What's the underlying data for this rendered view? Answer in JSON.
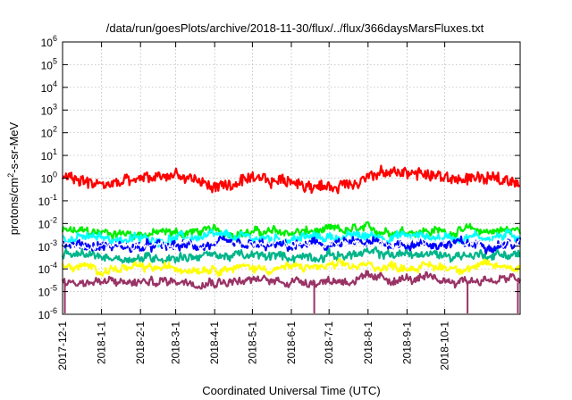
{
  "chart_data": {
    "type": "line",
    "title": "/data/run/goesPlots/archive/2018-11-30/flux/../flux/366daysMarsFluxes.txt",
    "xlabel": "Coordinated Universal Time (UTC)",
    "ylabel": "protons/cm2-s-sr-MeV",
    "ylabel_parts": {
      "base": "protons/cm",
      "sup": "2",
      "rest": "-s-sr-MeV"
    },
    "yscale": "log",
    "ylim_exp": [
      -6,
      6
    ],
    "y_ticks": [
      {
        "base": "10",
        "exp": "-6",
        "e": -6
      },
      {
        "base": "10",
        "exp": "-5",
        "e": -5
      },
      {
        "base": "10",
        "exp": "-4",
        "e": -4
      },
      {
        "base": "10",
        "exp": "-3",
        "e": -3
      },
      {
        "base": "10",
        "exp": "-2",
        "e": -2
      },
      {
        "base": "10",
        "exp": "-1",
        "e": -1
      },
      {
        "base": "10",
        "exp": "0",
        "e": 0
      },
      {
        "base": "10",
        "exp": "1",
        "e": 1
      },
      {
        "base": "10",
        "exp": "2",
        "e": 2
      },
      {
        "base": "10",
        "exp": "3",
        "e": 3
      },
      {
        "base": "10",
        "exp": "4",
        "e": 4
      },
      {
        "base": "10",
        "exp": "5",
        "e": 5
      },
      {
        "base": "10",
        "exp": "6",
        "e": 6
      }
    ],
    "xlim": [
      "2017-12-01",
      "2018-11-30"
    ],
    "x_ticks": [
      {
        "label": "2017-12-1",
        "date": "2017-12-01"
      },
      {
        "label": "2018-1-1",
        "date": "2018-01-01"
      },
      {
        "label": "2018-2-1",
        "date": "2018-02-01"
      },
      {
        "label": "2018-3-1",
        "date": "2018-03-01"
      },
      {
        "label": "2018-4-1",
        "date": "2018-04-01"
      },
      {
        "label": "2018-5-1",
        "date": "2018-05-01"
      },
      {
        "label": "2018-6-1",
        "date": "2018-06-01"
      },
      {
        "label": "2018-7-1",
        "date": "2018-07-01"
      },
      {
        "label": "2018-8-1",
        "date": "2018-08-01"
      },
      {
        "label": "2018-9-1",
        "date": "2018-09-01"
      },
      {
        "label": "2018-10-1",
        "date": "2018-10-01"
      }
    ],
    "grid": true,
    "series": [
      {
        "color": "#00ee00",
        "x": [
          "2017-12-01",
          "2018-01-01",
          "2018-02-01",
          "2018-03-01",
          "2018-04-01",
          "2018-05-01",
          "2018-06-01",
          "2018-07-01",
          "2018-08-01",
          "2018-09-01",
          "2018-10-01",
          "2018-11-30"
        ],
        "y": [
          0.0045,
          0.004,
          0.0035,
          0.004,
          0.0045,
          0.004,
          0.004,
          0.0045,
          0.005,
          0.005,
          0.0045,
          0.005
        ]
      },
      {
        "color": "#00ffff",
        "x": [
          "2017-12-01",
          "2018-01-01",
          "2018-02-01",
          "2018-03-01",
          "2018-04-01",
          "2018-05-01",
          "2018-06-01",
          "2018-07-01",
          "2018-08-01",
          "2018-09-01",
          "2018-10-01",
          "2018-11-30"
        ],
        "y": [
          0.0025,
          0.0022,
          0.002,
          0.0022,
          0.0025,
          0.0022,
          0.0022,
          0.0025,
          0.0028,
          0.0028,
          0.0025,
          0.0028
        ]
      },
      {
        "color": "#0000ff",
        "x": [
          "2017-12-01",
          "2018-01-01",
          "2018-02-01",
          "2018-03-01",
          "2018-04-01",
          "2018-05-01",
          "2018-06-01",
          "2018-07-01",
          "2018-08-01",
          "2018-09-01",
          "2018-10-01",
          "2018-11-30"
        ],
        "y": [
          0.0012,
          0.001,
          0.0009,
          0.001,
          0.0011,
          0.001,
          0.001,
          0.0012,
          0.0013,
          0.0013,
          0.0012,
          0.0013
        ]
      },
      {
        "color": "#ffffff",
        "x": [
          "2017-12-01",
          "2018-01-01",
          "2018-02-01",
          "2018-03-01",
          "2018-04-01",
          "2018-05-01",
          "2018-06-01",
          "2018-07-01",
          "2018-08-01",
          "2018-09-01",
          "2018-10-01",
          "2018-11-30"
        ],
        "y": [
          0.0014,
          0.0012,
          0.0011,
          0.0012,
          0.0013,
          0.0012,
          0.0012,
          0.0014,
          0.0015,
          0.0015,
          0.0014,
          0.0015
        ]
      },
      {
        "color": "#00b58a",
        "x": [
          "2017-12-01",
          "2018-01-01",
          "2018-02-01",
          "2018-03-01",
          "2018-04-01",
          "2018-05-01",
          "2018-06-01",
          "2018-07-01",
          "2018-08-01",
          "2018-09-01",
          "2018-10-01",
          "2018-11-30"
        ],
        "y": [
          0.0004,
          0.00035,
          0.0003,
          0.00035,
          0.0004,
          0.00035,
          0.00035,
          0.0004,
          0.00045,
          0.00045,
          0.0004,
          0.00045
        ]
      },
      {
        "color": "#ffff00",
        "x": [
          "2017-12-01",
          "2018-01-01",
          "2018-02-01",
          "2018-03-01",
          "2018-04-01",
          "2018-05-01",
          "2018-06-01",
          "2018-07-01",
          "2018-08-01",
          "2018-09-01",
          "2018-10-01",
          "2018-11-30"
        ],
        "y": [
          0.00012,
          0.0001,
          0.0001,
          0.00011,
          0.00012,
          0.00011,
          0.00011,
          0.00012,
          0.00013,
          0.00013,
          0.00012,
          0.00013
        ]
      },
      {
        "color": "#993366",
        "x": [
          "2017-12-01",
          "2018-01-01",
          "2018-02-01",
          "2018-03-01",
          "2018-04-01",
          "2018-05-01",
          "2018-06-01",
          "2018-07-01",
          "2018-08-01",
          "2018-09-01",
          "2018-10-01",
          "2018-11-30"
        ],
        "y": [
          3e-05,
          2.5e-05,
          2.5e-05,
          3e-05,
          3e-05,
          3e-05,
          3e-05,
          3e-05,
          3.5e-05,
          3.5e-05,
          3e-05,
          3.5e-05
        ]
      },
      {
        "color": "#ff0000",
        "x": [
          "2017-12-01",
          "2018-01-01",
          "2018-02-01",
          "2018-03-01",
          "2018-04-01",
          "2018-05-01",
          "2018-06-01",
          "2018-07-01",
          "2018-08-01",
          "2018-09-01",
          "2018-10-01",
          "2018-11-30"
        ],
        "y": [
          1.0,
          0.5,
          0.8,
          1.5,
          0.4,
          0.7,
          0.8,
          0.35,
          1.2,
          2.0,
          1.0,
          0.8
        ]
      }
    ]
  }
}
